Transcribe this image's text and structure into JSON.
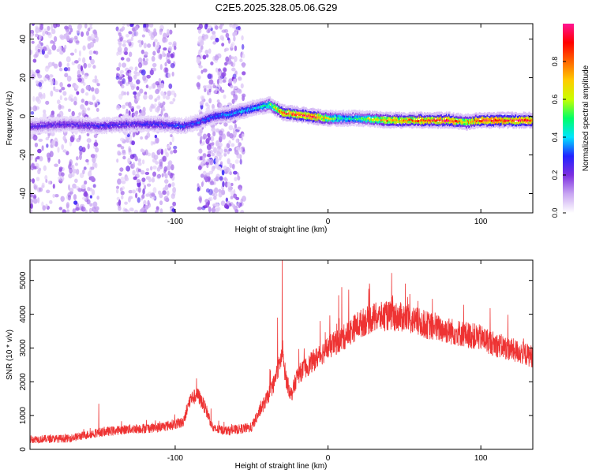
{
  "title": "C2E5.2025.328.05.06.G29",
  "chart_data": [
    {
      "type": "heatmap",
      "name": "spectrogram",
      "xlabel": "Height of straight line (km)",
      "ylabel": "Frequency (Hz)",
      "xlim": [
        -195,
        134
      ],
      "ylim": [
        -50,
        48
      ],
      "x_ticks": [
        -100,
        0,
        100
      ],
      "y_ticks": [
        -40,
        -20,
        0,
        20,
        40
      ],
      "colorbar": {
        "label": "Normalized spectral amplitude",
        "range": [
          0,
          1
        ],
        "ticks": [
          "0.0",
          "0.2",
          "0.4",
          "0.6",
          "0.8"
        ],
        "tick_values": [
          0.0,
          0.2,
          0.4,
          0.6,
          0.8
        ],
        "colors": [
          "#ffffff",
          "#c9a6f2",
          "#7d2ee0",
          "#2222ff",
          "#00e5ff",
          "#00ff66",
          "#c8ff00",
          "#ffcc00",
          "#ff6600",
          "#ff0000",
          "#ff1493"
        ]
      },
      "track": {
        "x": [
          -195,
          -170,
          -150,
          -130,
          -110,
          -95,
          -85,
          -75,
          -65,
          -55,
          -45,
          -38,
          -30,
          -20,
          -10,
          0,
          10,
          20,
          40,
          60,
          80,
          90,
          100,
          120,
          134
        ],
        "freq": [
          -5,
          -4,
          -5,
          -4,
          -4,
          -5,
          -3,
          0,
          1,
          3,
          5,
          6,
          2,
          1,
          0,
          -1,
          -1,
          -1,
          -2,
          -2,
          -2,
          -3,
          -2,
          -2,
          -2
        ],
        "amplitude": [
          0.22,
          0.22,
          0.25,
          0.25,
          0.27,
          0.3,
          0.3,
          0.32,
          0.35,
          0.38,
          0.4,
          0.55,
          0.85,
          0.9,
          0.95,
          0.6,
          0.45,
          0.5,
          0.8,
          0.85,
          0.95,
          0.7,
          0.95,
          0.95,
          0.9
        ]
      },
      "noise_bands_km": [
        [
          -195,
          -150
        ],
        [
          -138,
          -100
        ],
        [
          -85,
          -55
        ]
      ]
    },
    {
      "type": "line",
      "name": "snr",
      "xlabel": "Height of straight line (km)",
      "ylabel": "SNR (10 * v/v)",
      "xlim": [
        -195,
        134
      ],
      "ylim": [
        0,
        5600
      ],
      "x_ticks": [
        -100,
        0,
        100
      ],
      "y_ticks": [
        0,
        1000,
        2000,
        3000,
        4000,
        5000
      ],
      "color": "#ee3333",
      "x": [
        -195,
        -170,
        -150,
        -130,
        -110,
        -95,
        -90,
        -85,
        -80,
        -75,
        -65,
        -50,
        -45,
        -40,
        -35,
        -30,
        -27,
        -24,
        -20,
        -10,
        0,
        10,
        20,
        30,
        40,
        50,
        60,
        70,
        80,
        90,
        100,
        110,
        120,
        134
      ],
      "values": [
        300,
        320,
        500,
        600,
        650,
        800,
        1500,
        1600,
        1200,
        600,
        550,
        650,
        1100,
        1500,
        2000,
        2800,
        2000,
        1600,
        2200,
        2600,
        3000,
        3300,
        3700,
        3900,
        3950,
        3900,
        3750,
        3600,
        3500,
        3400,
        3300,
        3100,
        2950,
        2750
      ],
      "spikes": [
        {
          "x": -30,
          "value": 5600
        },
        {
          "x": -33,
          "value": 3900
        },
        {
          "x": 9,
          "value": 4800
        },
        {
          "x": -150,
          "value": 1350
        },
        {
          "x": -86,
          "value": 2100
        }
      ]
    }
  ]
}
